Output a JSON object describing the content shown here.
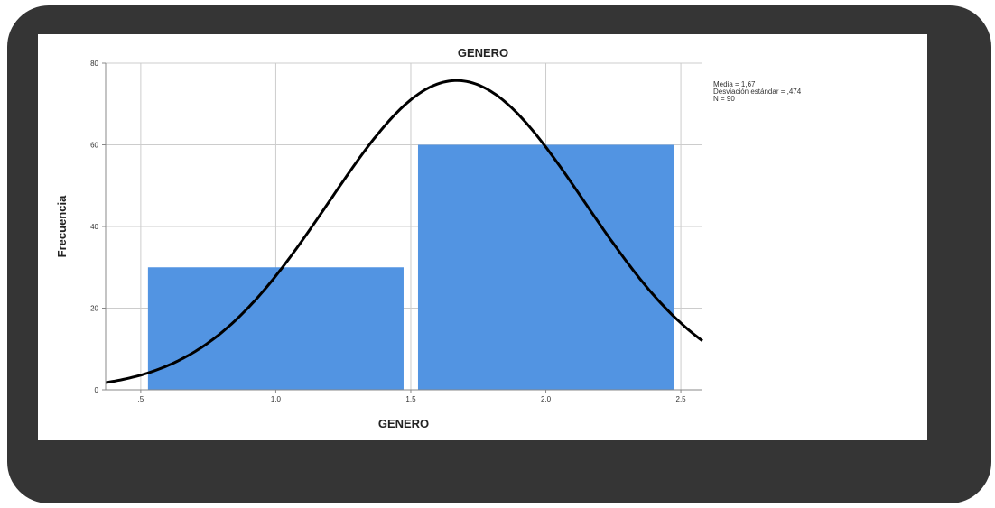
{
  "chart_data": {
    "type": "bar",
    "title": "GENERO",
    "xlabel": "GENERO",
    "ylabel": "Frecuencia",
    "bins": [
      {
        "x0": 0.5,
        "x1": 1.5,
        "value": 30
      },
      {
        "x0": 1.5,
        "x1": 2.5,
        "value": 60
      }
    ],
    "xlim": [
      0.37,
      2.58
    ],
    "ylim": [
      0,
      80
    ],
    "xticks": [
      0.5,
      1.0,
      1.5,
      2.0,
      2.5
    ],
    "xtick_labels": [
      ",5",
      "1,0",
      "1,5",
      "2,0",
      "2,5"
    ],
    "yticks": [
      0,
      20,
      40,
      60,
      80
    ],
    "ytick_labels": [
      "0",
      "20",
      "40",
      "60",
      "80"
    ],
    "normal_curve": {
      "mean": 1.67,
      "sd": 0.474,
      "n": 90,
      "bin_width": 1.0
    },
    "grid": true,
    "stats_text": [
      "Media = 1,67",
      "Desviación estándar = ,474",
      "N = 90"
    ],
    "bar_color": "#5294E2",
    "curve_color": "#000000"
  }
}
